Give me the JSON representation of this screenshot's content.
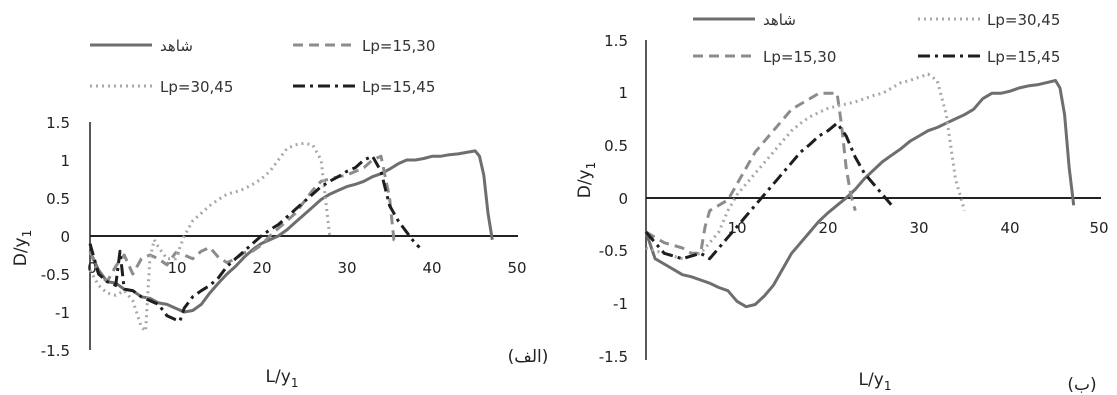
{
  "chart_data": [
    {
      "panel": "الف",
      "panel_label": "(الف)",
      "type": "line",
      "xlabel": "L/y",
      "xlabel_sub": "1",
      "ylabel": "D/y",
      "ylabel_sub": "1",
      "xlim": [
        0,
        50
      ],
      "ylim": [
        -1.5,
        1.5
      ],
      "x_ticks": [
        0,
        10,
        20,
        30,
        40,
        50
      ],
      "x_tick_labels": [
        "0",
        "10",
        "20",
        "30",
        "40",
        "50"
      ],
      "y_ticks": [
        -1.5,
        -1,
        -0.5,
        0,
        0.5,
        1,
        1.5
      ],
      "y_tick_labels": [
        "-1.5",
        "-1",
        "-0.5",
        "0",
        "0.5",
        "1",
        "1.5"
      ],
      "grid": false,
      "series": [
        {
          "name": "شاهد",
          "color": "#6e6e6e",
          "dash": "solid",
          "x": [
            0,
            1,
            2,
            3,
            4,
            5,
            6,
            7,
            8,
            9,
            10,
            11,
            12,
            13,
            14,
            15,
            16,
            17,
            18,
            19,
            20,
            21,
            22,
            23,
            24,
            25,
            26,
            27,
            28,
            29,
            30,
            31,
            32,
            33,
            34,
            35,
            36,
            37,
            38,
            39,
            40,
            41,
            42,
            43,
            44,
            45,
            45.5,
            46,
            46.5,
            47
          ],
          "y": [
            -0.2,
            -0.45,
            -0.6,
            -0.62,
            -0.7,
            -0.72,
            -0.8,
            -0.82,
            -0.88,
            -0.9,
            -0.95,
            -1.0,
            -0.98,
            -0.9,
            -0.75,
            -0.62,
            -0.5,
            -0.4,
            -0.28,
            -0.18,
            -0.1,
            -0.05,
            0.0,
            0.08,
            0.18,
            0.28,
            0.38,
            0.48,
            0.55,
            0.6,
            0.65,
            0.68,
            0.72,
            0.78,
            0.82,
            0.88,
            0.95,
            1.0,
            1.0,
            1.02,
            1.05,
            1.05,
            1.07,
            1.08,
            1.1,
            1.12,
            1.05,
            0.8,
            0.3,
            -0.05
          ]
        },
        {
          "name": "Lp=15,30",
          "color": "#8c8c8c",
          "dash": "dashed",
          "x": [
            0,
            1,
            2,
            3,
            4,
            5,
            6,
            7,
            8,
            9,
            10,
            11,
            12,
            13,
            14,
            15,
            16,
            17,
            18,
            19,
            20,
            21,
            22,
            23,
            24,
            25,
            26,
            27,
            28,
            29,
            30,
            31,
            32,
            33,
            34,
            35,
            35.5,
            36
          ],
          "y": [
            -0.2,
            -0.5,
            -0.6,
            -0.4,
            -0.25,
            -0.5,
            -0.3,
            -0.25,
            -0.3,
            -0.38,
            -0.22,
            -0.25,
            -0.3,
            -0.2,
            -0.15,
            -0.28,
            -0.35,
            -0.3,
            -0.22,
            -0.2,
            -0.12,
            0.0,
            0.1,
            0.2,
            0.3,
            0.45,
            0.6,
            0.72,
            0.75,
            0.78,
            0.8,
            0.85,
            0.9,
            1.0,
            1.05,
            0.5,
            -0.05,
            -0.05
          ]
        },
        {
          "name": "Lp=30,45",
          "color": "#a8a8a8",
          "dash": "dotted",
          "x": [
            0,
            1,
            2,
            3,
            4,
            5,
            6,
            6.5,
            7,
            7.5,
            8,
            9,
            10,
            11,
            12,
            13,
            14,
            15,
            16,
            17,
            18,
            19,
            20,
            21,
            22,
            23,
            24,
            25,
            26,
            27,
            27.5,
            28
          ],
          "y": [
            -0.45,
            -0.65,
            -0.75,
            -0.78,
            -0.72,
            -0.85,
            -1.2,
            -1.25,
            -0.3,
            -0.05,
            -0.15,
            -0.3,
            -0.3,
            0.0,
            0.2,
            0.3,
            0.4,
            0.48,
            0.55,
            0.58,
            0.62,
            0.68,
            0.75,
            0.85,
            1.0,
            1.15,
            1.2,
            1.22,
            1.2,
            1.0,
            0.5,
            0.0
          ]
        },
        {
          "name": "Lp=15,45",
          "color": "#1e1e1e",
          "dash": "dashdot",
          "x": [
            0,
            1,
            2,
            3,
            3.5,
            4,
            5,
            6,
            7,
            8,
            9,
            10,
            10.5,
            11,
            12,
            13,
            14,
            15,
            16,
            17,
            18,
            19,
            20,
            21,
            22,
            23,
            24,
            25,
            26,
            27,
            28,
            29,
            30,
            31,
            32,
            33,
            34,
            35,
            36,
            37,
            38,
            38.5
          ],
          "y": [
            -0.1,
            -0.5,
            -0.6,
            -0.65,
            -0.2,
            -0.7,
            -0.72,
            -0.8,
            -0.85,
            -0.9,
            -1.05,
            -1.1,
            -1.12,
            -0.95,
            -0.8,
            -0.72,
            -0.65,
            -0.55,
            -0.4,
            -0.3,
            -0.2,
            -0.1,
            0.0,
            0.08,
            0.15,
            0.25,
            0.35,
            0.45,
            0.55,
            0.65,
            0.72,
            0.78,
            0.85,
            0.9,
            1.0,
            1.05,
            0.85,
            0.4,
            0.2,
            0.05,
            -0.1,
            -0.15
          ]
        }
      ],
      "legend": {
        "placement": "top",
        "entries": [
          "شاهد",
          "Lp=15,30",
          "Lp=30,45",
          "Lp=15,45"
        ]
      }
    },
    {
      "panel": "ب",
      "panel_label": "(ب)",
      "type": "line",
      "xlabel": "L/y",
      "xlabel_sub": "1",
      "ylabel": "D/y",
      "ylabel_sub": "1",
      "xlim": [
        0,
        50
      ],
      "ylim": [
        -1.5,
        1.5
      ],
      "x_ticks": [
        10,
        20,
        30,
        40,
        50
      ],
      "x_tick_labels": [
        "10",
        "20",
        "30",
        "40",
        "50"
      ],
      "y_ticks": [
        -1.5,
        -1,
        -0.5,
        0,
        0.5,
        1,
        1.5
      ],
      "y_tick_labels": [
        "-1.5",
        "-1",
        "-0.5",
        "0",
        "0.5",
        "1",
        "1.5"
      ],
      "grid": false,
      "series": [
        {
          "name": "شاهد",
          "color": "#6e6e6e",
          "dash": "solid",
          "x": [
            0,
            1,
            2,
            3,
            4,
            5,
            6,
            7,
            8,
            9,
            10,
            11,
            12,
            13,
            14,
            15,
            16,
            17,
            18,
            19,
            20,
            21,
            22,
            23,
            24,
            25,
            26,
            27,
            28,
            29,
            30,
            31,
            32,
            33,
            34,
            35,
            36,
            37,
            38,
            39,
            40,
            41,
            42,
            43,
            44,
            45,
            45.5,
            46,
            46.5,
            47
          ],
          "y": [
            -0.3,
            -0.55,
            -0.6,
            -0.65,
            -0.7,
            -0.72,
            -0.75,
            -0.78,
            -0.82,
            -0.85,
            -0.95,
            -1.0,
            -0.98,
            -0.9,
            -0.8,
            -0.65,
            -0.5,
            -0.4,
            -0.3,
            -0.2,
            -0.12,
            -0.05,
            0.02,
            0.1,
            0.2,
            0.28,
            0.36,
            0.42,
            0.48,
            0.55,
            0.6,
            0.65,
            0.68,
            0.72,
            0.76,
            0.8,
            0.85,
            0.95,
            1.0,
            1.0,
            1.02,
            1.05,
            1.07,
            1.08,
            1.1,
            1.12,
            1.05,
            0.8,
            0.3,
            -0.05
          ]
        },
        {
          "name": "Lp=15,30",
          "color": "#8c8c8c",
          "dash": "dashed",
          "x": [
            0,
            2,
            4,
            5,
            6,
            6.5,
            7,
            8,
            9,
            10,
            11,
            12,
            13,
            14,
            15,
            16,
            17,
            18,
            19,
            20,
            21,
            21.5,
            22,
            22.5,
            23
          ],
          "y": [
            -0.3,
            -0.4,
            -0.45,
            -0.5,
            -0.5,
            -0.25,
            -0.1,
            -0.05,
            0.0,
            0.15,
            0.3,
            0.45,
            0.55,
            0.65,
            0.75,
            0.85,
            0.9,
            0.95,
            1.0,
            1.0,
            1.0,
            0.7,
            0.3,
            0.05,
            -0.1
          ]
        },
        {
          "name": "Lp=30,45",
          "color": "#a8a8a8",
          "dash": "dotted",
          "x": [
            0,
            2,
            4,
            6,
            8,
            9,
            10,
            11,
            12,
            13,
            14,
            15,
            16,
            17,
            18,
            19,
            20,
            21,
            22,
            23,
            24,
            25,
            26,
            27,
            28,
            29,
            30,
            31,
            32,
            33,
            34,
            35
          ],
          "y": [
            -0.45,
            -0.5,
            -0.55,
            -0.5,
            -0.3,
            -0.1,
            0.05,
            0.15,
            0.25,
            0.35,
            0.45,
            0.55,
            0.65,
            0.72,
            0.78,
            0.82,
            0.86,
            0.88,
            0.9,
            0.92,
            0.95,
            0.98,
            1.0,
            1.05,
            1.1,
            1.12,
            1.15,
            1.18,
            1.12,
            0.8,
            0.2,
            -0.1
          ]
        },
        {
          "name": "Lp=15,45",
          "color": "#1e1e1e",
          "dash": "dashdot",
          "x": [
            0,
            2,
            4,
            6,
            7,
            8,
            9,
            10,
            11,
            12,
            13,
            14,
            15,
            16,
            17,
            18,
            19,
            20,
            21,
            22,
            23,
            24,
            25,
            26,
            27
          ],
          "y": [
            -0.3,
            -0.5,
            -0.55,
            -0.5,
            -0.55,
            -0.45,
            -0.35,
            -0.25,
            -0.15,
            -0.05,
            0.05,
            0.15,
            0.25,
            0.35,
            0.45,
            0.52,
            0.6,
            0.65,
            0.72,
            0.6,
            0.4,
            0.25,
            0.15,
            0.05,
            -0.05
          ]
        }
      ],
      "legend": {
        "placement": "top",
        "entries": [
          "شاهد",
          "Lp=30,45",
          "Lp=15,30",
          "Lp=15,45"
        ]
      }
    }
  ]
}
